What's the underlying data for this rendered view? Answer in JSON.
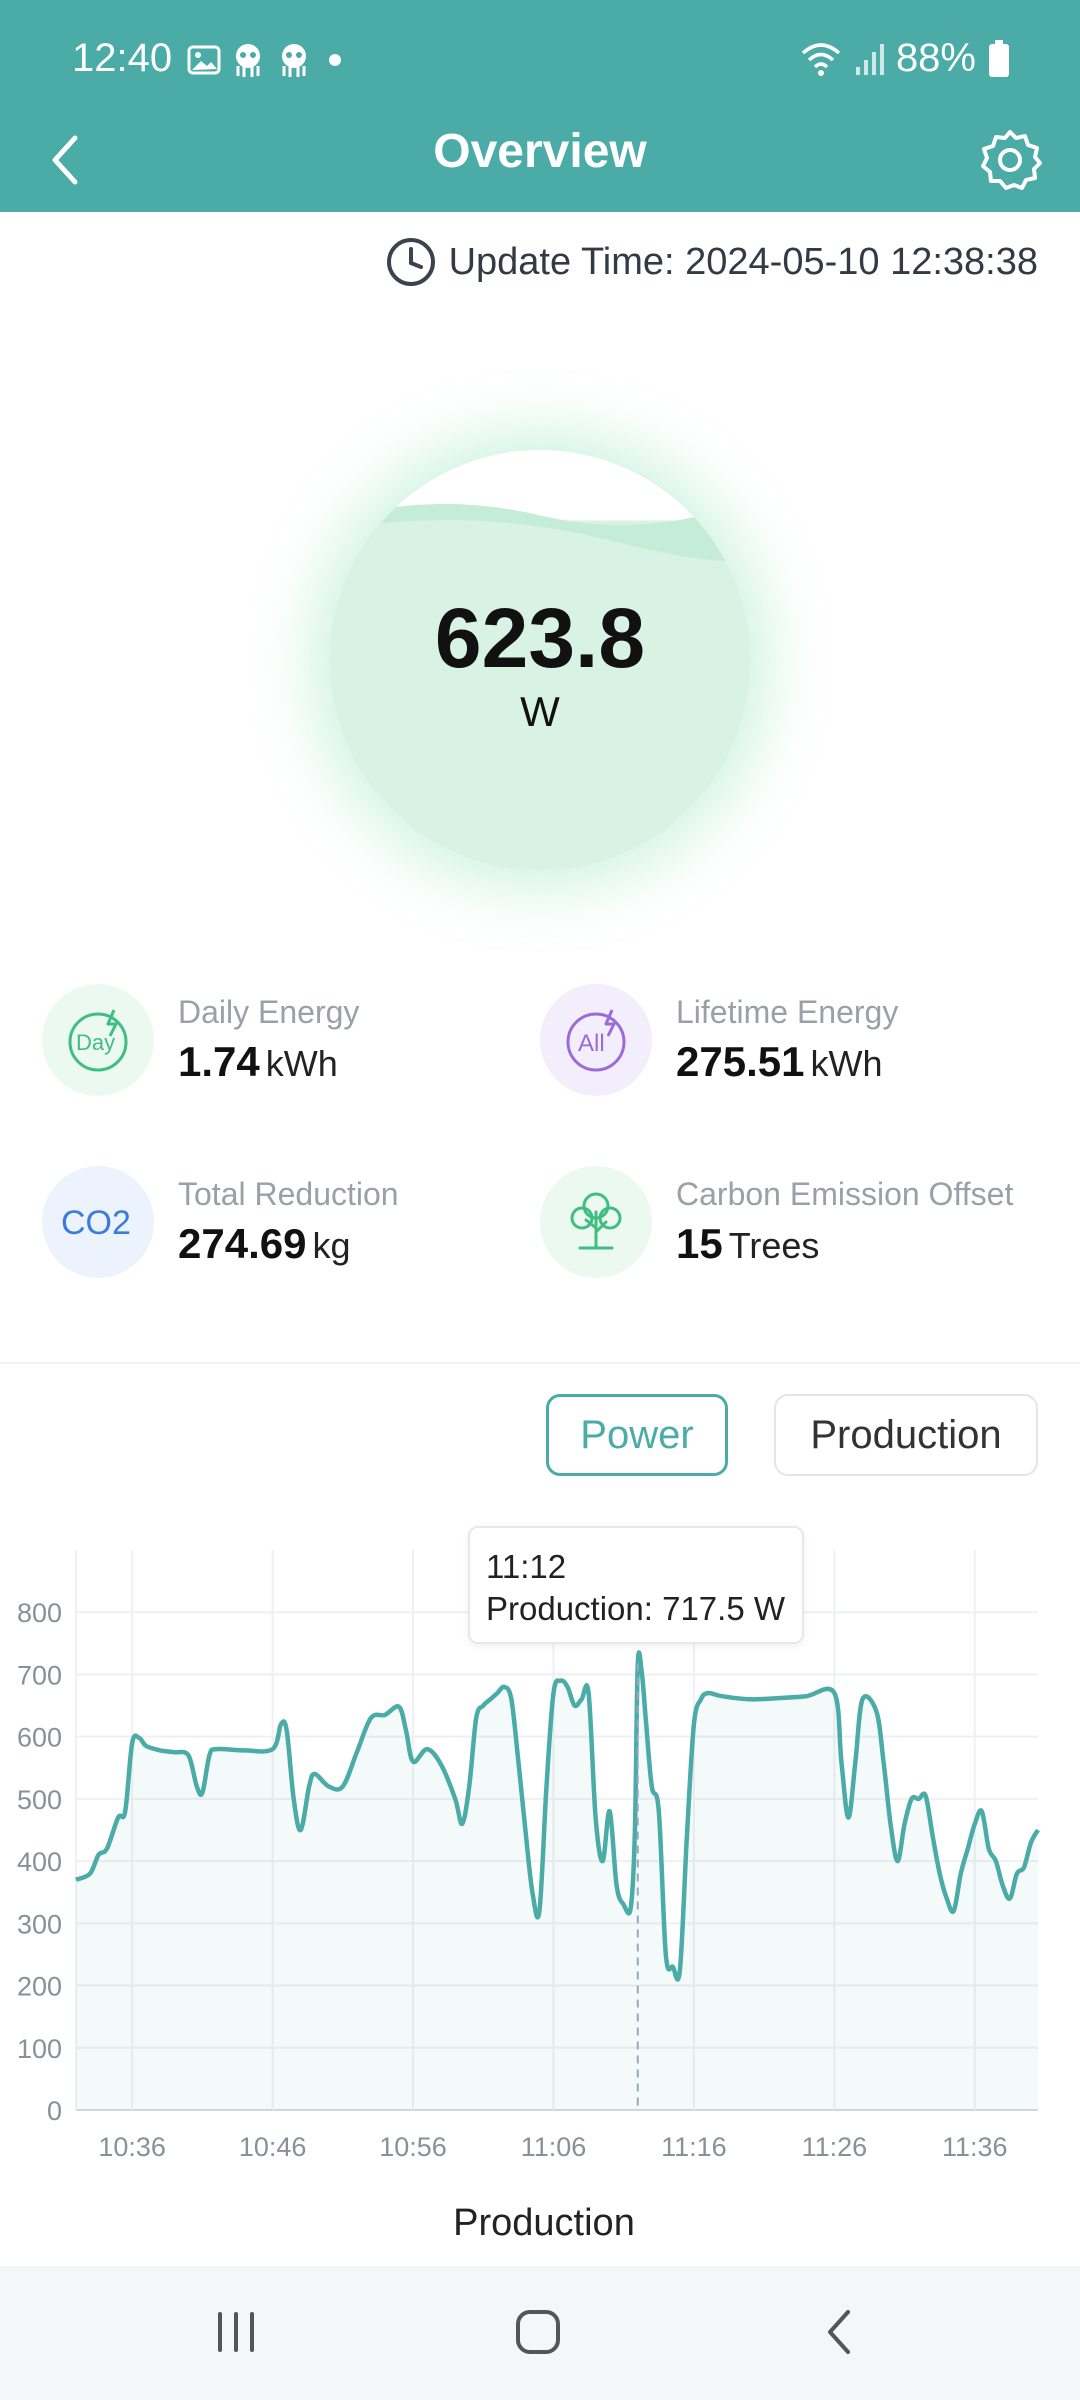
{
  "status_bar": {
    "time": "12:40",
    "battery": "88%"
  },
  "header": {
    "title": "Overview"
  },
  "update": {
    "label": "Update Time: 2024-05-10 12:38:38"
  },
  "gauge": {
    "value": "623.8",
    "unit": "W",
    "fill_fraction": 0.88
  },
  "stats": [
    {
      "label": "Daily Energy",
      "value": "1.74",
      "unit": "kWh",
      "icon": "day-energy-icon",
      "icon_text": "Day",
      "color": "#3fbf7f"
    },
    {
      "label": "Lifetime Energy",
      "value": "275.51",
      "unit": "kWh",
      "icon": "all-energy-icon",
      "icon_text": "All",
      "color": "#9b6bd9"
    },
    {
      "label": "Total Reduction",
      "value": "274.69",
      "unit": "kg",
      "icon": "co2-icon",
      "icon_text": "CO2",
      "color": "#3b7be0"
    },
    {
      "label": "Carbon Emission Offset",
      "value": "15",
      "unit": "Trees",
      "icon": "tree-icon",
      "icon_text": "",
      "color": "#3fbf7f"
    }
  ],
  "tabs": {
    "power": "Power",
    "production": "Production",
    "active": "power"
  },
  "tooltip": {
    "time": "11:12",
    "text": "Production: 717.5 W"
  },
  "chart_data": {
    "type": "area",
    "title": "Production",
    "xlabel": "",
    "ylabel": "",
    "ylim": [
      0,
      900
    ],
    "yticks": [
      0,
      100,
      200,
      300,
      400,
      500,
      600,
      700,
      800
    ],
    "xticks": [
      "10:36",
      "10:46",
      "10:56",
      "11:06",
      "11:16",
      "11:26",
      "11:36"
    ],
    "xtick_minutes": [
      36,
      46,
      56,
      66,
      76,
      86,
      96
    ],
    "xrange_minutes": [
      32,
      100.5
    ],
    "line_color": "#4aaba7",
    "grid": true,
    "highlight_minute": 72,
    "series": [
      {
        "name": "Production",
        "points": [
          [
            32,
            370
          ],
          [
            33,
            380
          ],
          [
            33.6,
            410
          ],
          [
            34.2,
            420
          ],
          [
            35,
            470
          ],
          [
            35.5,
            480
          ],
          [
            36,
            590
          ],
          [
            36.5,
            598
          ],
          [
            37,
            585
          ],
          [
            38,
            578
          ],
          [
            39,
            575
          ],
          [
            40,
            570
          ],
          [
            40.6,
            520
          ],
          [
            41,
            510
          ],
          [
            41.5,
            570
          ],
          [
            42,
            580
          ],
          [
            44,
            578
          ],
          [
            46,
            580
          ],
          [
            46.6,
            620
          ],
          [
            47,
            610
          ],
          [
            47.5,
            500
          ],
          [
            48,
            450
          ],
          [
            48.6,
            520
          ],
          [
            49,
            540
          ],
          [
            50,
            520
          ],
          [
            51,
            520
          ],
          [
            52,
            575
          ],
          [
            53,
            630
          ],
          [
            54,
            635
          ],
          [
            55,
            648
          ],
          [
            55.5,
            610
          ],
          [
            56,
            560
          ],
          [
            57,
            580
          ],
          [
            58,
            555
          ],
          [
            59,
            500
          ],
          [
            59.5,
            460
          ],
          [
            60,
            520
          ],
          [
            60.5,
            630
          ],
          [
            61,
            650
          ],
          [
            61.5,
            660
          ],
          [
            62,
            670
          ],
          [
            62.5,
            680
          ],
          [
            63,
            660
          ],
          [
            63.5,
            560
          ],
          [
            64,
            450
          ],
          [
            64.5,
            350
          ],
          [
            65,
            320
          ],
          [
            65.5,
            520
          ],
          [
            66,
            670
          ],
          [
            66.5,
            690
          ],
          [
            67,
            680
          ],
          [
            67.5,
            650
          ],
          [
            68,
            660
          ],
          [
            68.5,
            670
          ],
          [
            69,
            470
          ],
          [
            69.5,
            400
          ],
          [
            70,
            480
          ],
          [
            70.5,
            360
          ],
          [
            71,
            330
          ],
          [
            71.5,
            325
          ],
          [
            71.8,
            450
          ],
          [
            72,
            717.5
          ],
          [
            72.3,
            700
          ],
          [
            72.6,
            620
          ],
          [
            73,
            520
          ],
          [
            73.5,
            480
          ],
          [
            74,
            250
          ],
          [
            74.5,
            230
          ],
          [
            75,
            225
          ],
          [
            75.5,
            440
          ],
          [
            76,
            620
          ],
          [
            76.5,
            660
          ],
          [
            77,
            670
          ],
          [
            78,
            665
          ],
          [
            80,
            660
          ],
          [
            82,
            662
          ],
          [
            84,
            665
          ],
          [
            86,
            670
          ],
          [
            86.5,
            560
          ],
          [
            87,
            470
          ],
          [
            87.5,
            560
          ],
          [
            88,
            660
          ],
          [
            89,
            640
          ],
          [
            89.5,
            560
          ],
          [
            90,
            460
          ],
          [
            90.5,
            400
          ],
          [
            91,
            460
          ],
          [
            91.5,
            500
          ],
          [
            92,
            500
          ],
          [
            92.5,
            505
          ],
          [
            93,
            440
          ],
          [
            93.5,
            380
          ],
          [
            94,
            340
          ],
          [
            94.5,
            320
          ],
          [
            95,
            380
          ],
          [
            95.5,
            420
          ],
          [
            96,
            460
          ],
          [
            96.5,
            480
          ],
          [
            97,
            420
          ],
          [
            97.5,
            400
          ],
          [
            98,
            360
          ],
          [
            98.5,
            340
          ],
          [
            99,
            380
          ],
          [
            99.5,
            390
          ],
          [
            100,
            430
          ],
          [
            100.5,
            450
          ]
        ]
      }
    ]
  },
  "nav": {
    "recents": "recents-icon",
    "home": "home-icon",
    "back": "back-icon"
  }
}
